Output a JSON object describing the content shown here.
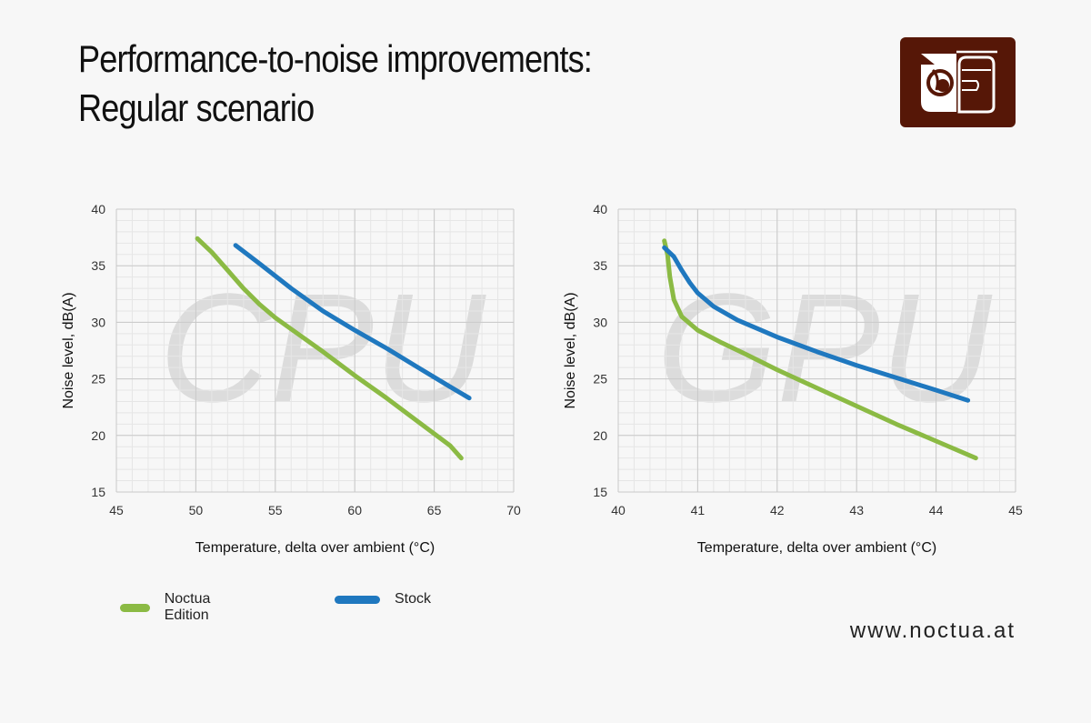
{
  "title": {
    "line1": "Performance-to-noise improvements:",
    "line2": "Regular scenario"
  },
  "colors": {
    "background": "#f7f7f7",
    "noctua_edition": "#8bba44",
    "stock": "#1f78bf",
    "logo_bg": "#561707",
    "grid_major": "#c8c8c8",
    "grid_minor": "#e6e6e6"
  },
  "logo_icon": "noctua-owl-logo-icon",
  "legend": [
    {
      "name": "Noctua Edition",
      "color": "#8bba44"
    },
    {
      "name": "Stock",
      "color": "#1f78bf"
    }
  ],
  "footer": {
    "url": "www.noctua.at"
  },
  "chart_data": [
    {
      "type": "line",
      "watermark": "CPU",
      "xlabel": "Temperature, delta over ambient (°C)",
      "ylabel": "Noise level, dB(A)",
      "xlim": [
        45,
        70
      ],
      "ylim": [
        15,
        40
      ],
      "xticks": [
        45,
        50,
        55,
        60,
        65,
        70
      ],
      "yticks": [
        15,
        20,
        25,
        30,
        35,
        40
      ],
      "grid": true,
      "series": [
        {
          "name": "Noctua Edition",
          "color": "#8bba44",
          "x": [
            50.1,
            51.0,
            52.0,
            53.0,
            54.0,
            55.0,
            56.0,
            58.0,
            60.0,
            62.0,
            64.0,
            66.0,
            66.7
          ],
          "y": [
            37.4,
            36.2,
            34.6,
            33.0,
            31.6,
            30.4,
            29.4,
            27.4,
            25.3,
            23.3,
            21.2,
            19.1,
            18.0
          ]
        },
        {
          "name": "Stock",
          "color": "#1f78bf",
          "x": [
            52.5,
            54.0,
            56.0,
            58.0,
            60.0,
            62.0,
            64.0,
            66.0,
            67.2
          ],
          "y": [
            36.8,
            35.2,
            33.0,
            31.0,
            29.3,
            27.7,
            26.0,
            24.3,
            23.3
          ]
        }
      ]
    },
    {
      "type": "line",
      "watermark": "GPU",
      "xlabel": "Temperature, delta over ambient (°C)",
      "ylabel": "Noise level, dB(A)",
      "xlim": [
        40,
        45
      ],
      "ylim": [
        15,
        40
      ],
      "xticks": [
        40,
        41,
        42,
        43,
        44,
        45
      ],
      "yticks": [
        15,
        20,
        25,
        30,
        35,
        40
      ],
      "grid": true,
      "series": [
        {
          "name": "Noctua Edition",
          "color": "#8bba44",
          "x": [
            40.58,
            40.62,
            40.65,
            40.7,
            40.8,
            41.0,
            41.3,
            41.6,
            42.0,
            42.5,
            43.0,
            43.5,
            44.0,
            44.5
          ],
          "y": [
            37.2,
            36.0,
            34.0,
            32.0,
            30.5,
            29.3,
            28.2,
            27.2,
            25.8,
            24.2,
            22.6,
            21.0,
            19.5,
            18.0
          ]
        },
        {
          "name": "Stock",
          "color": "#1f78bf",
          "x": [
            40.58,
            40.7,
            40.8,
            40.9,
            41.0,
            41.2,
            41.5,
            42.0,
            42.5,
            43.0,
            43.5,
            44.0,
            44.4
          ],
          "y": [
            36.6,
            35.8,
            34.6,
            33.5,
            32.6,
            31.4,
            30.2,
            28.7,
            27.4,
            26.2,
            25.1,
            24.0,
            23.1
          ]
        }
      ]
    }
  ]
}
